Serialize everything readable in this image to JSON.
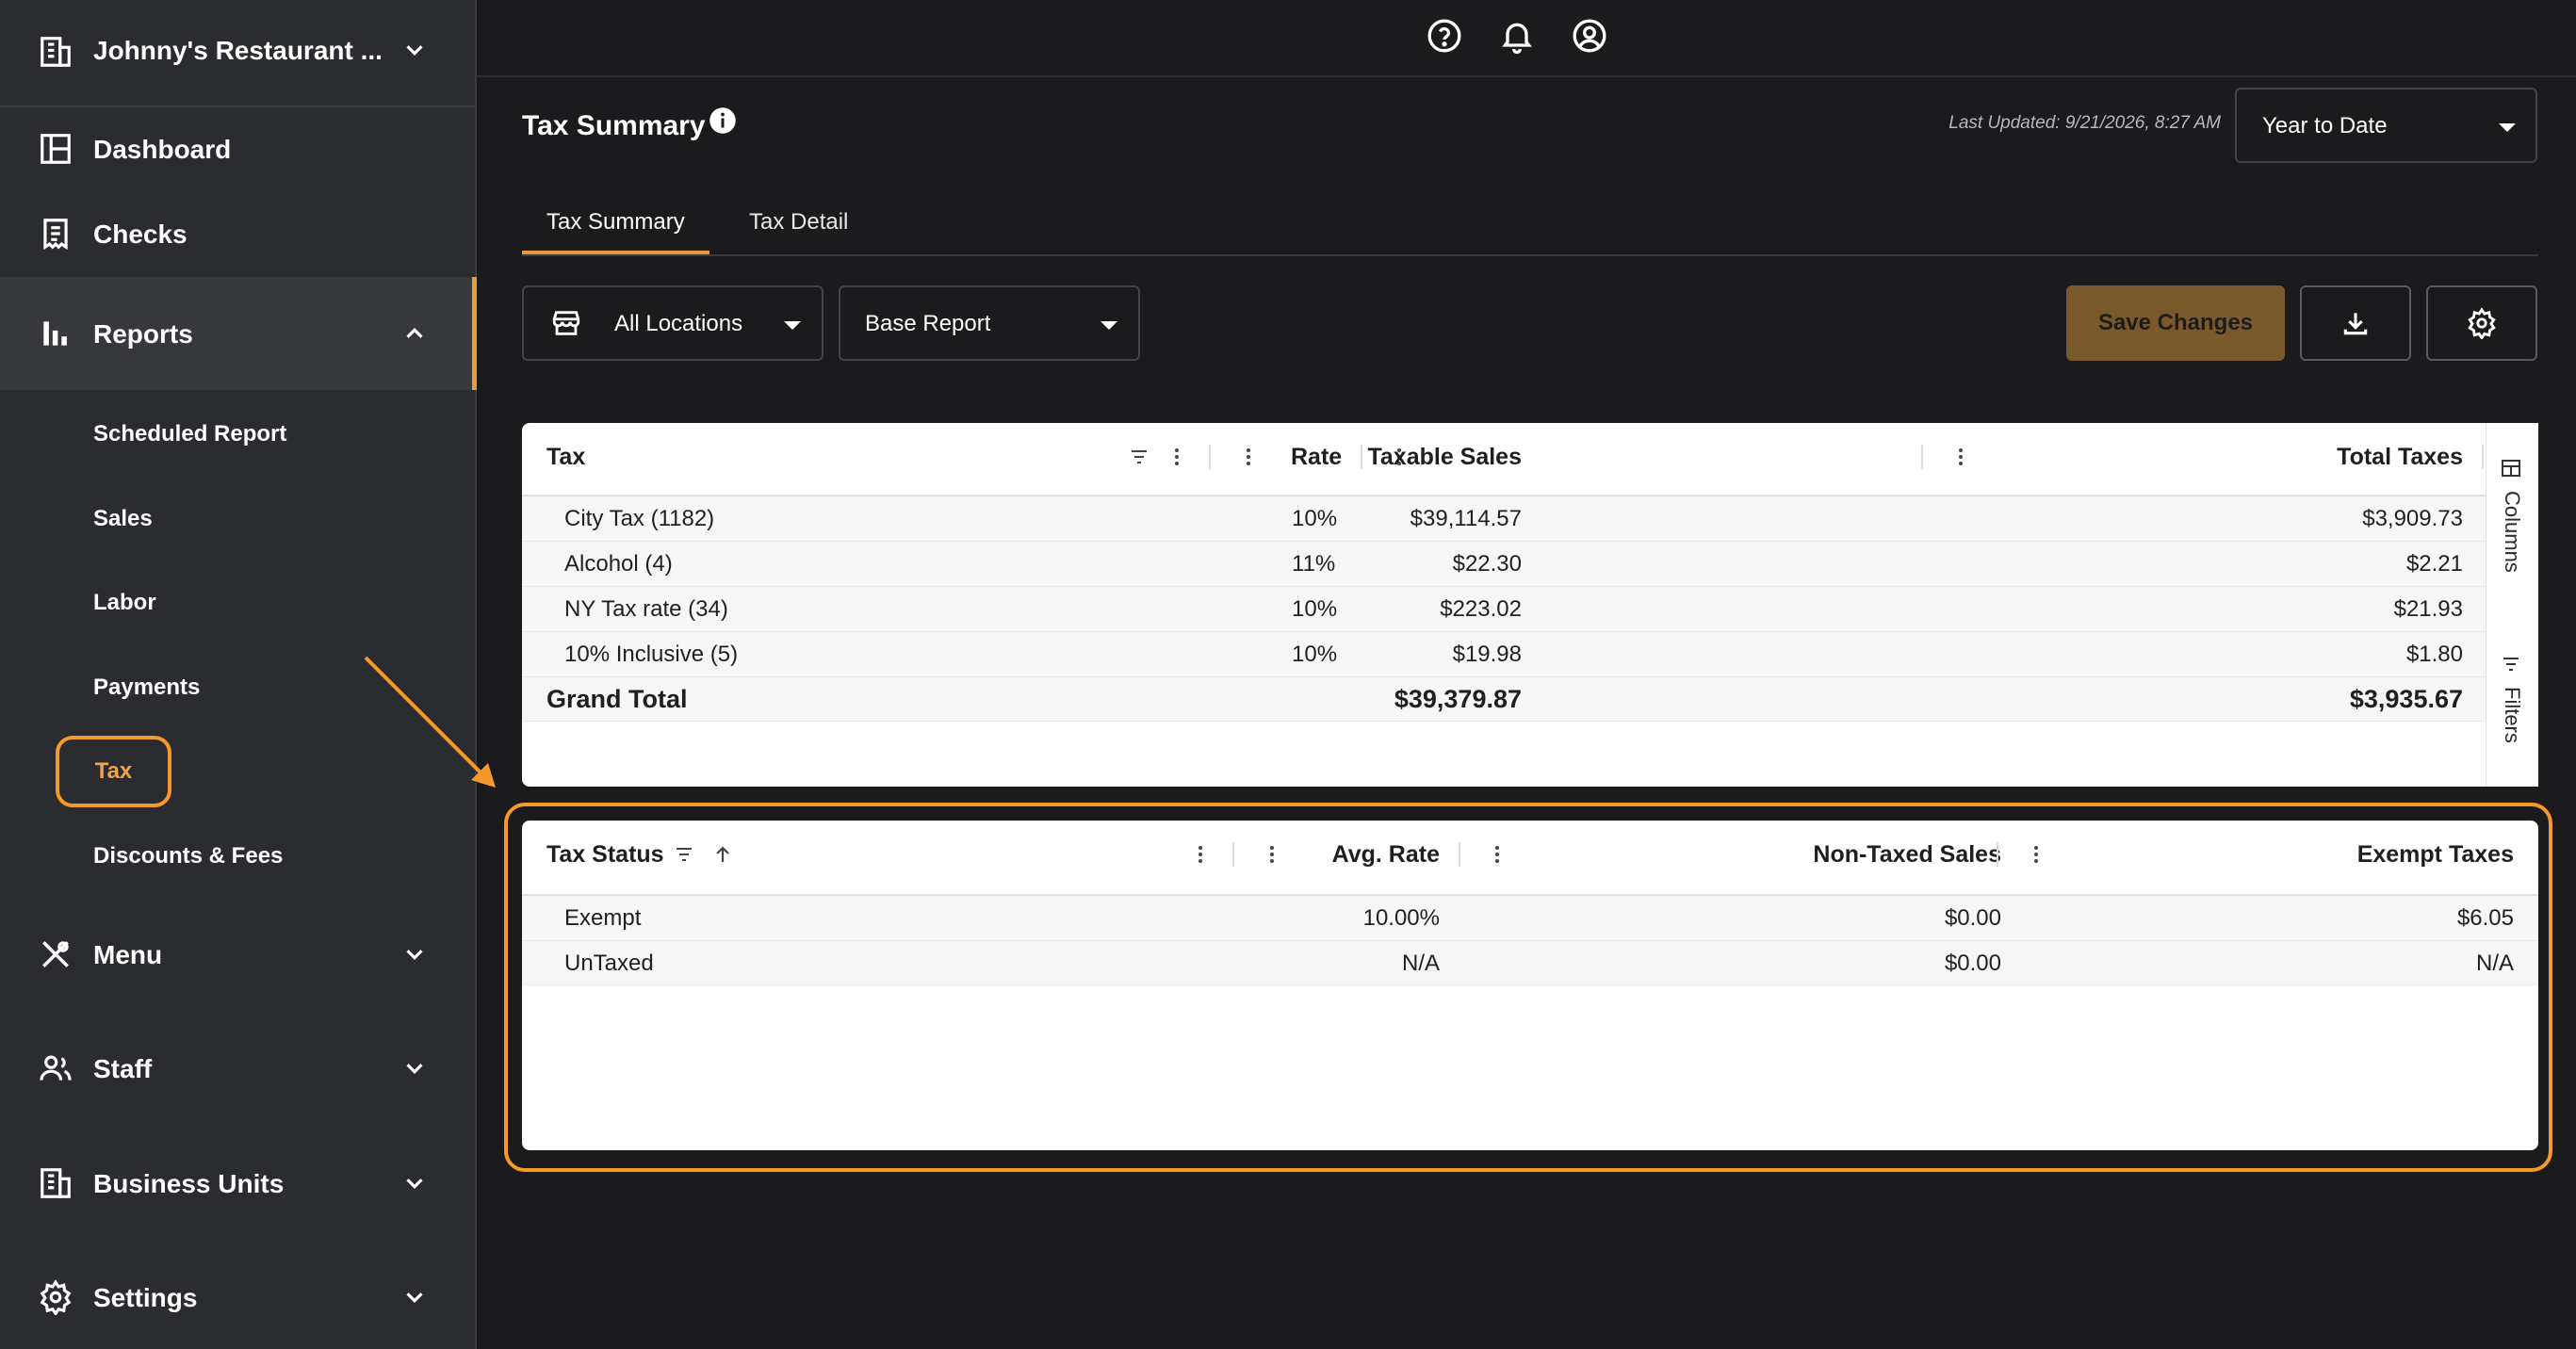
{
  "sidebar": {
    "org_name": "Johnny's Restaurant ...",
    "nav": [
      {
        "label": "Dashboard"
      },
      {
        "label": "Checks"
      },
      {
        "label": "Reports"
      },
      {
        "label": "Menu"
      },
      {
        "label": "Staff"
      },
      {
        "label": "Business Units"
      },
      {
        "label": "Settings"
      }
    ],
    "reports_sub": [
      {
        "label": "Scheduled Report"
      },
      {
        "label": "Sales"
      },
      {
        "label": "Labor"
      },
      {
        "label": "Payments"
      },
      {
        "label": "Tax"
      },
      {
        "label": "Discounts & Fees"
      }
    ]
  },
  "header": {
    "title": "Tax Summary",
    "last_updated": "Last Updated: 9/21/2026, 8:27 AM",
    "date_range": "Year to Date",
    "icons": [
      "help-icon",
      "bell-icon",
      "account-icon"
    ]
  },
  "tabs": [
    {
      "label": "Tax Summary",
      "active": true
    },
    {
      "label": "Tax Detail",
      "active": false
    }
  ],
  "toolbar": {
    "location": "All Locations",
    "report_type": "Base Report",
    "save_label": "Save Changes"
  },
  "tax_table": {
    "columns": [
      "Tax",
      "Rate",
      "Taxable Sales",
      "Total Taxes"
    ],
    "rows": [
      [
        "City Tax (1182)",
        "10%",
        "$39,114.57",
        "$3,909.73"
      ],
      [
        "Alcohol (4)",
        "11%",
        "$22.30",
        "$2.21"
      ],
      [
        "NY Tax rate (34)",
        "10%",
        "$223.02",
        "$21.93"
      ],
      [
        "10% Inclusive (5)",
        "10%",
        "$19.98",
        "$1.80"
      ]
    ],
    "total": {
      "label": "Grand Total",
      "taxable_sales": "$39,379.87",
      "total_taxes": "$3,935.67"
    },
    "side_panel": {
      "columns": "Columns",
      "filters": "Filters"
    }
  },
  "status_table": {
    "columns": [
      "Tax Status",
      "Avg. Rate",
      "Non-Taxed Sales",
      "Exempt Taxes"
    ],
    "rows": [
      [
        "Exempt",
        "10.00%",
        "$0.00",
        "$6.05"
      ],
      [
        "UnTaxed",
        "N/A",
        "$0.00",
        "N/A"
      ]
    ]
  },
  "colors": {
    "accent": "#E89A3C",
    "highlight": "#F39A2B",
    "save_button": "#7A5A2C",
    "sidebar_bg": "#2B2C2F",
    "page_bg": "#1B1B1D"
  }
}
